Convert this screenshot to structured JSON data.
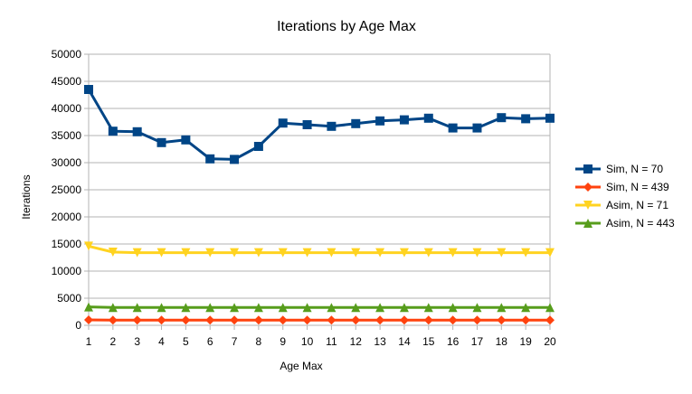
{
  "chart_data": {
    "type": "line",
    "title": "Iterations by Age Max",
    "xlabel": "Age Max",
    "ylabel": "Iterations",
    "x": [
      1,
      2,
      3,
      4,
      5,
      6,
      7,
      8,
      9,
      10,
      11,
      12,
      13,
      14,
      15,
      16,
      17,
      18,
      19,
      20
    ],
    "ylim": [
      0,
      50000
    ],
    "ytick_step": 5000,
    "grid": "horizontal",
    "legend_position": "right",
    "series": [
      {
        "name": "Sim, N = 70",
        "color": "#004586",
        "marker": "square",
        "values": [
          43500,
          35800,
          35700,
          33700,
          34200,
          30700,
          30600,
          33000,
          37300,
          37000,
          36700,
          37200,
          37700,
          37900,
          38200,
          36400,
          36400,
          38300,
          38100,
          38200
        ]
      },
      {
        "name": "Sim, N = 439",
        "color": "#ff420e",
        "marker": "diamond",
        "values": [
          1000,
          950,
          950,
          950,
          950,
          950,
          950,
          950,
          950,
          950,
          950,
          950,
          950,
          950,
          950,
          950,
          950,
          950,
          950,
          950
        ]
      },
      {
        "name": "Asim, N = 71",
        "color": "#ffd320",
        "marker": "triangle-down",
        "values": [
          14600,
          13500,
          13400,
          13400,
          13400,
          13400,
          13400,
          13400,
          13400,
          13400,
          13400,
          13400,
          13400,
          13400,
          13400,
          13400,
          13400,
          13400,
          13400,
          13400
        ]
      },
      {
        "name": "Asim, N = 443",
        "color": "#579d1c",
        "marker": "triangle-up",
        "values": [
          3400,
          3300,
          3300,
          3300,
          3300,
          3300,
          3300,
          3300,
          3300,
          3300,
          3300,
          3300,
          3300,
          3300,
          3300,
          3300,
          3300,
          3300,
          3300,
          3300
        ]
      }
    ]
  }
}
